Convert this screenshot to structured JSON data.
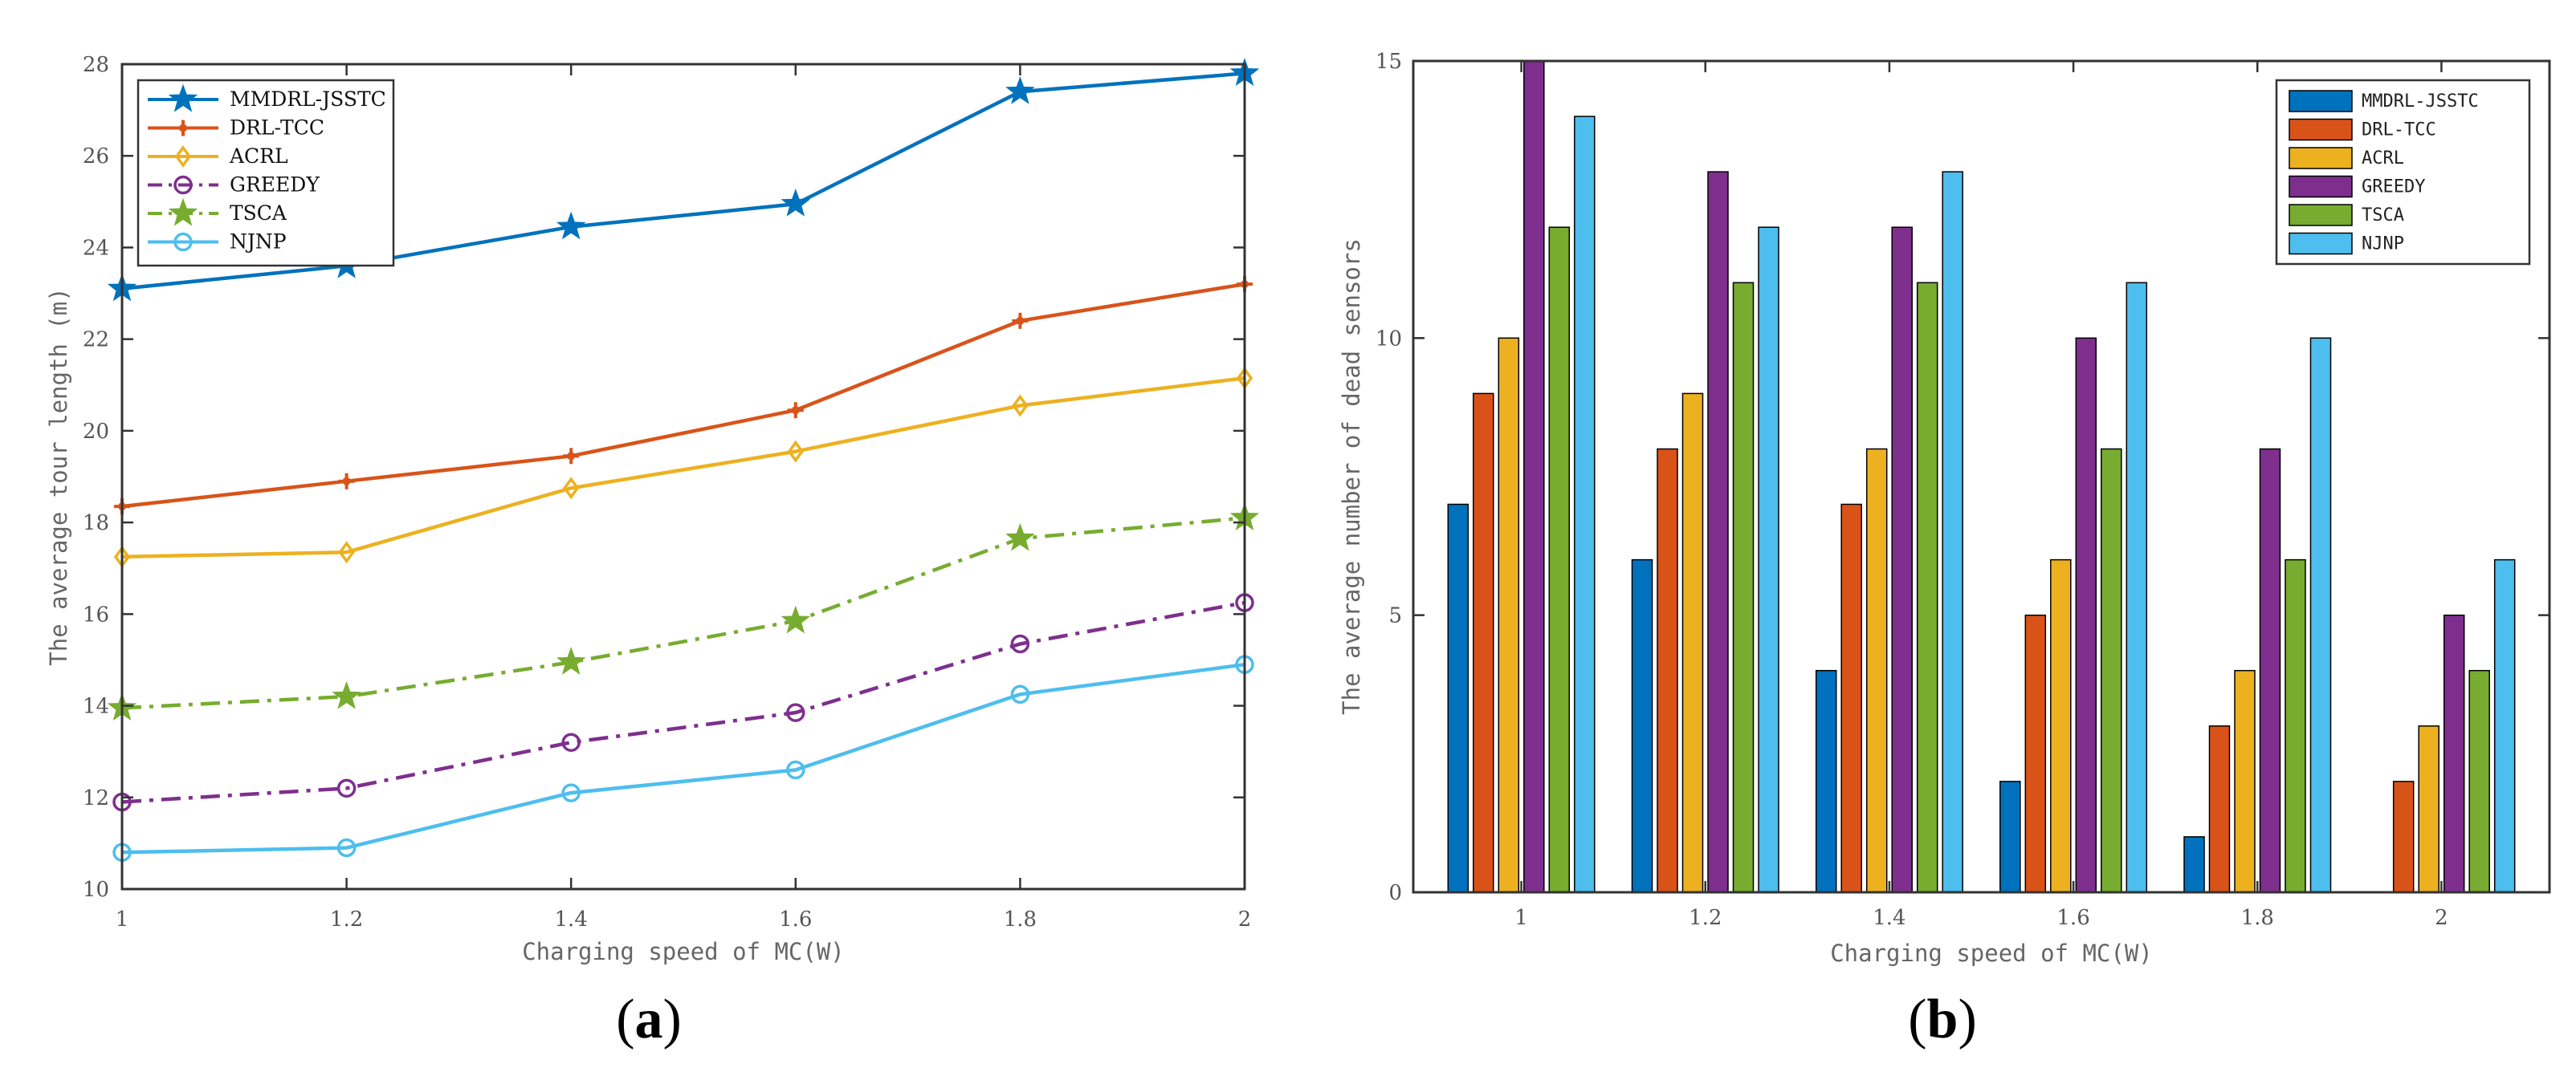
{
  "chart_data": [
    {
      "panel": "(a)",
      "panel_label": {
        "open": "(",
        "letter": "a",
        "close": ")"
      },
      "type": "line",
      "title": "",
      "xlabel": "Charging speed of MC(W)",
      "ylabel": "The average tour length (m)",
      "x": [
        1,
        1.2,
        1.4,
        1.6,
        1.8,
        2
      ],
      "x_tick_labels": [
        "1",
        "1.2",
        "1.4",
        "1.6",
        "1.8",
        "2"
      ],
      "xlim": [
        1,
        2
      ],
      "ylim": [
        10,
        28
      ],
      "y_ticks": [
        10,
        12,
        14,
        16,
        18,
        20,
        22,
        24,
        26,
        28
      ],
      "y_tick_labels": [
        "10",
        "12",
        "14",
        "16",
        "18",
        "20",
        "22",
        "24",
        "26",
        "28"
      ],
      "grid": false,
      "legend_position": "top-left",
      "series": [
        {
          "name": "MMDRL-JSSTC",
          "color": "#0072BD",
          "marker": "star",
          "dash": "solid",
          "values": [
            23.1,
            23.6,
            24.45,
            24.95,
            27.4,
            27.8
          ]
        },
        {
          "name": "DRL-TCC",
          "color": "#D95319",
          "marker": "plus",
          "dash": "solid",
          "values": [
            18.35,
            18.9,
            19.45,
            20.45,
            22.4,
            23.2
          ]
        },
        {
          "name": "ACRL",
          "color": "#EDB120",
          "marker": "diamond",
          "dash": "solid",
          "values": [
            17.25,
            17.35,
            18.75,
            19.55,
            20.55,
            21.15
          ]
        },
        {
          "name": "GREEDY",
          "color": "#7E2F8E",
          "marker": "circle",
          "dash": "dashdot",
          "values": [
            11.9,
            12.2,
            13.2,
            13.85,
            15.35,
            16.25
          ]
        },
        {
          "name": "TSCA",
          "color": "#77AC30",
          "marker": "star",
          "dash": "dashdot",
          "values": [
            13.95,
            14.2,
            14.95,
            15.85,
            17.65,
            18.1
          ]
        },
        {
          "name": "NJNP",
          "color": "#4DBEEE",
          "marker": "circle",
          "dash": "solid",
          "values": [
            10.8,
            10.9,
            12.1,
            12.6,
            14.25,
            14.9
          ]
        }
      ]
    },
    {
      "panel": "(b)",
      "panel_label": {
        "open": "(",
        "letter": "b",
        "close": ")"
      },
      "type": "bar",
      "title": "",
      "xlabel": "Charging speed of MC(W)",
      "ylabel": "The average number of dead sensors",
      "categories": [
        "1",
        "1.2",
        "1.4",
        "1.6",
        "1.8",
        "2"
      ],
      "ylim": [
        0,
        15
      ],
      "y_ticks": [
        0,
        5,
        10,
        15
      ],
      "y_tick_labels": [
        "0",
        "5",
        "10",
        "15"
      ],
      "grid": false,
      "legend_position": "top-right",
      "series": [
        {
          "name": "MMDRL-JSSTC",
          "color": "#0072BD",
          "values": [
            7,
            6,
            4,
            2,
            1,
            0
          ]
        },
        {
          "name": "DRL-TCC",
          "color": "#D95319",
          "values": [
            9,
            8,
            7,
            5,
            3,
            2
          ]
        },
        {
          "name": "ACRL",
          "color": "#EDB120",
          "values": [
            10,
            9,
            8,
            6,
            4,
            3
          ]
        },
        {
          "name": "GREEDY",
          "color": "#7E2F8E",
          "values": [
            15,
            13,
            12,
            10,
            8,
            5
          ]
        },
        {
          "name": "TSCA",
          "color": "#77AC30",
          "values": [
            12,
            11,
            11,
            8,
            6,
            4
          ]
        },
        {
          "name": "NJNP",
          "color": "#4DBEEE",
          "values": [
            14,
            12,
            13,
            11,
            10,
            6
          ]
        }
      ]
    }
  ]
}
